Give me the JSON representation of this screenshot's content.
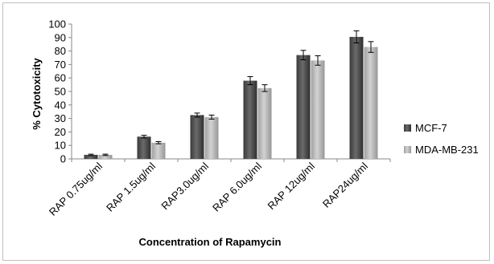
{
  "chart_data": {
    "type": "bar",
    "title": "",
    "xlabel": "Concentration of Rapamycin",
    "ylabel": "% Cytotoxicity",
    "ylim": [
      0,
      100
    ],
    "yticks": [
      0,
      10,
      20,
      30,
      40,
      50,
      60,
      70,
      80,
      90,
      100
    ],
    "grid": false,
    "legend_position": "right",
    "categories": [
      "RAP 0.75ug/ml",
      "RAP 1.5ug/ml",
      "RAP3.0ug/ml",
      "RAP 6.0ug/ml",
      "RAP 12ug/ml",
      "RAP24ug/ml"
    ],
    "series": [
      {
        "name": "MCF-7",
        "color": "#4d4d4d",
        "values": [
          3,
          16.5,
          32.5,
          58,
          77,
          90.5
        ],
        "errors": [
          0.5,
          1,
          1.5,
          3,
          3.5,
          4.5
        ]
      },
      {
        "name": "MDA-MB-231",
        "color": "#b3b3b3",
        "values": [
          3,
          12,
          31,
          52.5,
          73,
          83
        ],
        "errors": [
          0.5,
          0.8,
          1.5,
          2.5,
          3.5,
          4
        ]
      }
    ]
  }
}
